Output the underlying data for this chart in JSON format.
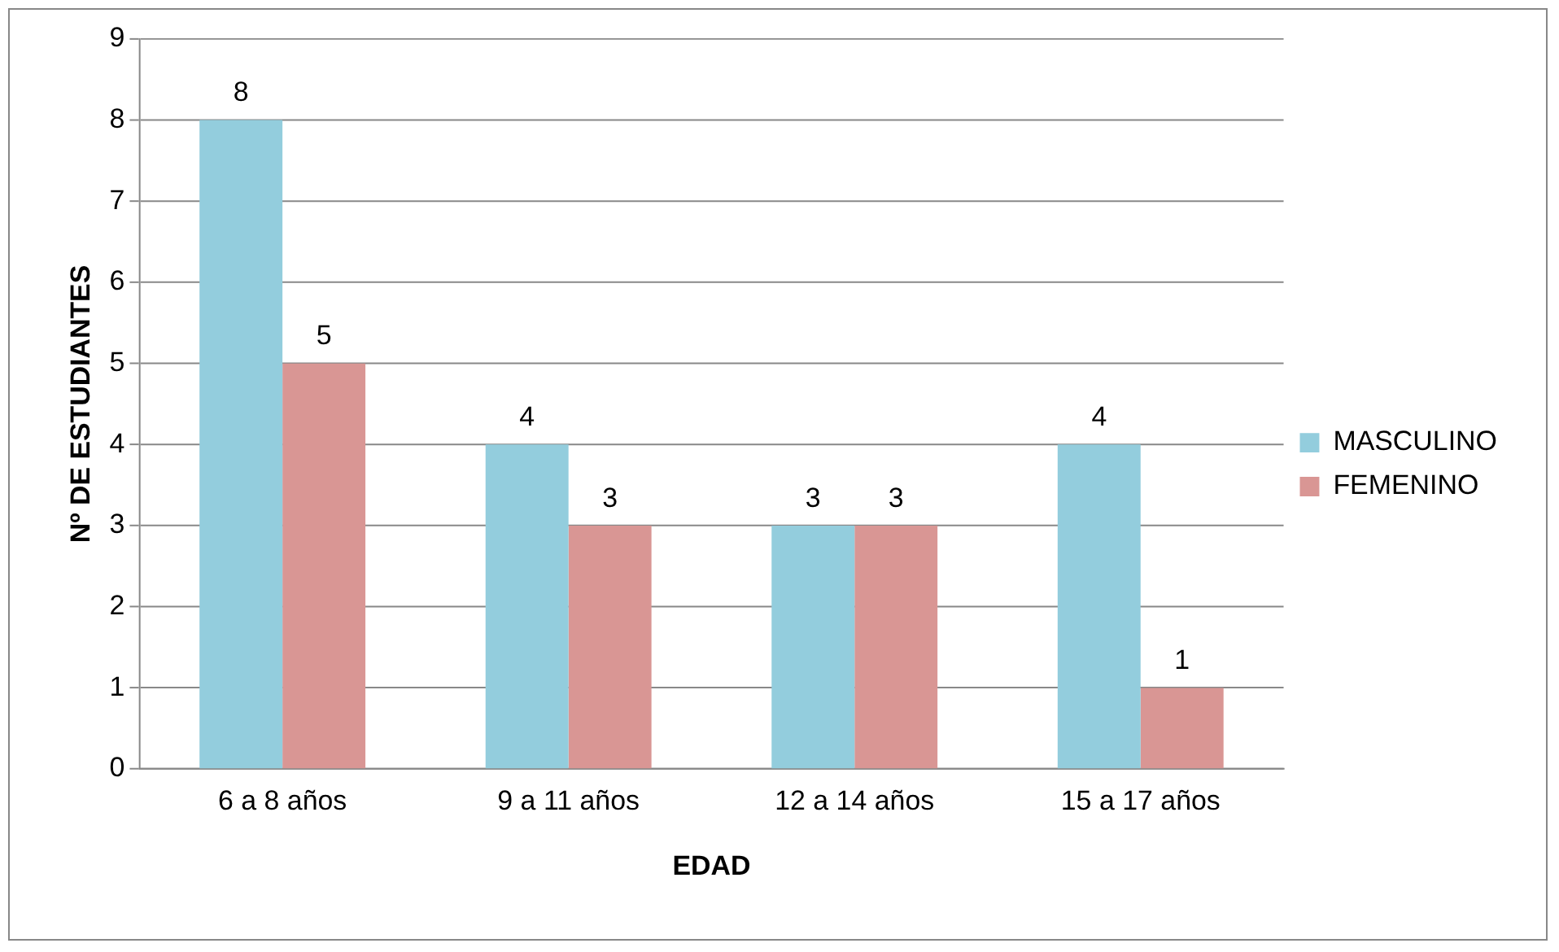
{
  "chart_data": {
    "type": "bar",
    "xlabel": "EDAD",
    "ylabel": "Nº DE ESTUDIANTES",
    "categories": [
      "6 a 8 años",
      "9 a 11 años",
      "12 a 14 años",
      "15 a 17 años"
    ],
    "series": [
      {
        "name": "MASCULINO",
        "color": "#93cddd",
        "values": [
          8,
          4,
          3,
          4
        ]
      },
      {
        "name": "FEMENINO",
        "color": "#d99694",
        "values": [
          5,
          3,
          3,
          1
        ]
      }
    ],
    "ylim": [
      0,
      9
    ],
    "yticks": [
      0,
      1,
      2,
      3,
      4,
      5,
      6,
      7,
      8,
      9
    ],
    "grid": "y",
    "legend": "right",
    "data_labels": true
  }
}
